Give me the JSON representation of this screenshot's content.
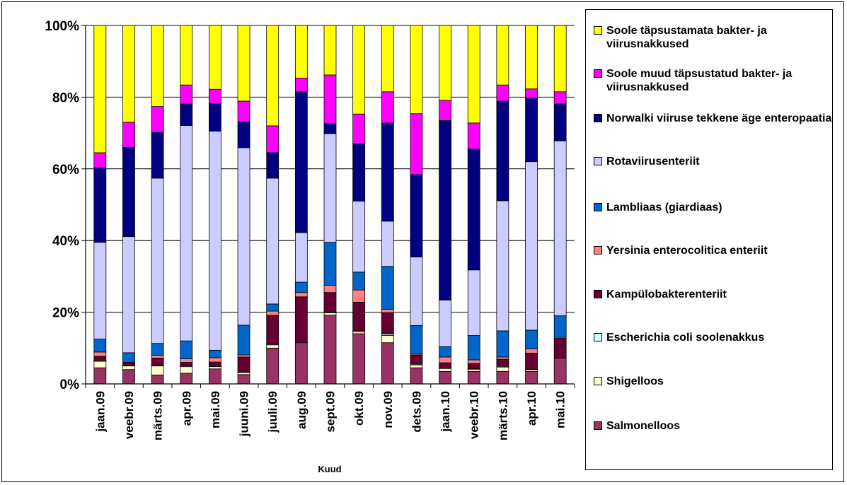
{
  "chart_data": {
    "type": "bar",
    "stacked": "percent",
    "title": "",
    "xlabel": "Kuud",
    "ylabel": "",
    "ylim": [
      0,
      100
    ],
    "yticks": [
      "0%",
      "20%",
      "40%",
      "60%",
      "80%",
      "100%"
    ],
    "grid": true,
    "legend_position": "right",
    "categories": [
      "jaan.09",
      "veebr.09",
      "märts.09",
      "apr.09",
      "mai.09",
      "juuni.09",
      "juuli.09",
      "aug.09",
      "sept.09",
      "okt.09",
      "nov.09",
      "dets.09",
      "jaan.10",
      "veebr.10",
      "märts.10",
      "apr.10",
      "mai.10"
    ],
    "series": [
      {
        "name": "Salmonelloos",
        "color": "#993366",
        "values": [
          4.5,
          4.0,
          2.5,
          3.0,
          4.2,
          2.6,
          10.0,
          11.5,
          19.2,
          14.0,
          11.5,
          4.5,
          3.5,
          3.5,
          3.5,
          3.5,
          7.2
        ]
      },
      {
        "name": "Shigelloos",
        "color": "#ffffcc",
        "values": [
          1.8,
          1.0,
          2.5,
          1.8,
          0.6,
          0.6,
          0.9,
          0,
          0.6,
          0.5,
          2.0,
          0.8,
          0.8,
          0.6,
          1.2,
          0.5,
          0
        ]
      },
      {
        "name": "Escherichia coli soolenakkus",
        "color": "#ccffff",
        "values": [
          0.2,
          0.1,
          0.2,
          0.2,
          0.1,
          0.1,
          0.2,
          0,
          0.2,
          0.3,
          0.4,
          0.2,
          0.1,
          0.1,
          0.2,
          0.1,
          0
        ]
      },
      {
        "name": "Kampülobakterenteriit",
        "color": "#660033",
        "values": [
          1.2,
          0.8,
          2.0,
          1.0,
          1.2,
          4.2,
          8.0,
          12.8,
          5.5,
          8.0,
          6.0,
          2.5,
          1.5,
          1.5,
          2.0,
          4.5,
          5.5
        ]
      },
      {
        "name": "Yersinia enterocolitica enteriit",
        "color": "#ff8080",
        "values": [
          1.2,
          0.1,
          0.8,
          1.0,
          1.2,
          0.6,
          1.2,
          1.2,
          2.0,
          3.4,
          0.9,
          0.3,
          1.6,
          1.0,
          0.6,
          1.2,
          0.3
        ]
      },
      {
        "name": "Lambliaas (giardiaas)",
        "color": "#0066cc",
        "values": [
          3.6,
          2.7,
          3.3,
          5.0,
          2.1,
          8.3,
          2.0,
          2.9,
          12.0,
          5.0,
          12.0,
          8.0,
          2.9,
          6.8,
          7.3,
          5.2,
          6.0
        ]
      },
      {
        "name": "Rotaviirusenteriit",
        "color": "#ccccff",
        "values": [
          27.0,
          32.4,
          46.1,
          60.1,
          61.1,
          49.5,
          35.1,
          13.8,
          30.3,
          19.8,
          12.6,
          19.1,
          13.0,
          18.3,
          36.3,
          47.0,
          48.8
        ]
      },
      {
        "name": "Norwalki viiruse tekkene äge enteropaatia",
        "color": "#000080",
        "values": [
          20.8,
          24.9,
          12.8,
          6.0,
          7.7,
          7.2,
          7.1,
          39.3,
          2.9,
          16.0,
          27.4,
          23.0,
          50.1,
          33.7,
          27.8,
          17.7,
          10.3
        ]
      },
      {
        "name": "Soole muud täpsustatud bakter- ja viirusnakkused",
        "color": "#ff00ff",
        "values": [
          4.2,
          7.0,
          7.2,
          5.3,
          4.0,
          5.8,
          7.5,
          3.8,
          13.5,
          8.3,
          8.7,
          17.0,
          5.6,
          7.3,
          4.5,
          2.6,
          3.4
        ]
      },
      {
        "name": "Soole täpsustamata bakter- ja viirusnakkused",
        "color": "#ffff00",
        "values": [
          35.5,
          27.0,
          22.6,
          16.6,
          17.8,
          21.1,
          28.0,
          14.7,
          13.8,
          24.7,
          18.5,
          24.6,
          20.9,
          27.2,
          16.6,
          17.7,
          18.5
        ]
      }
    ]
  }
}
